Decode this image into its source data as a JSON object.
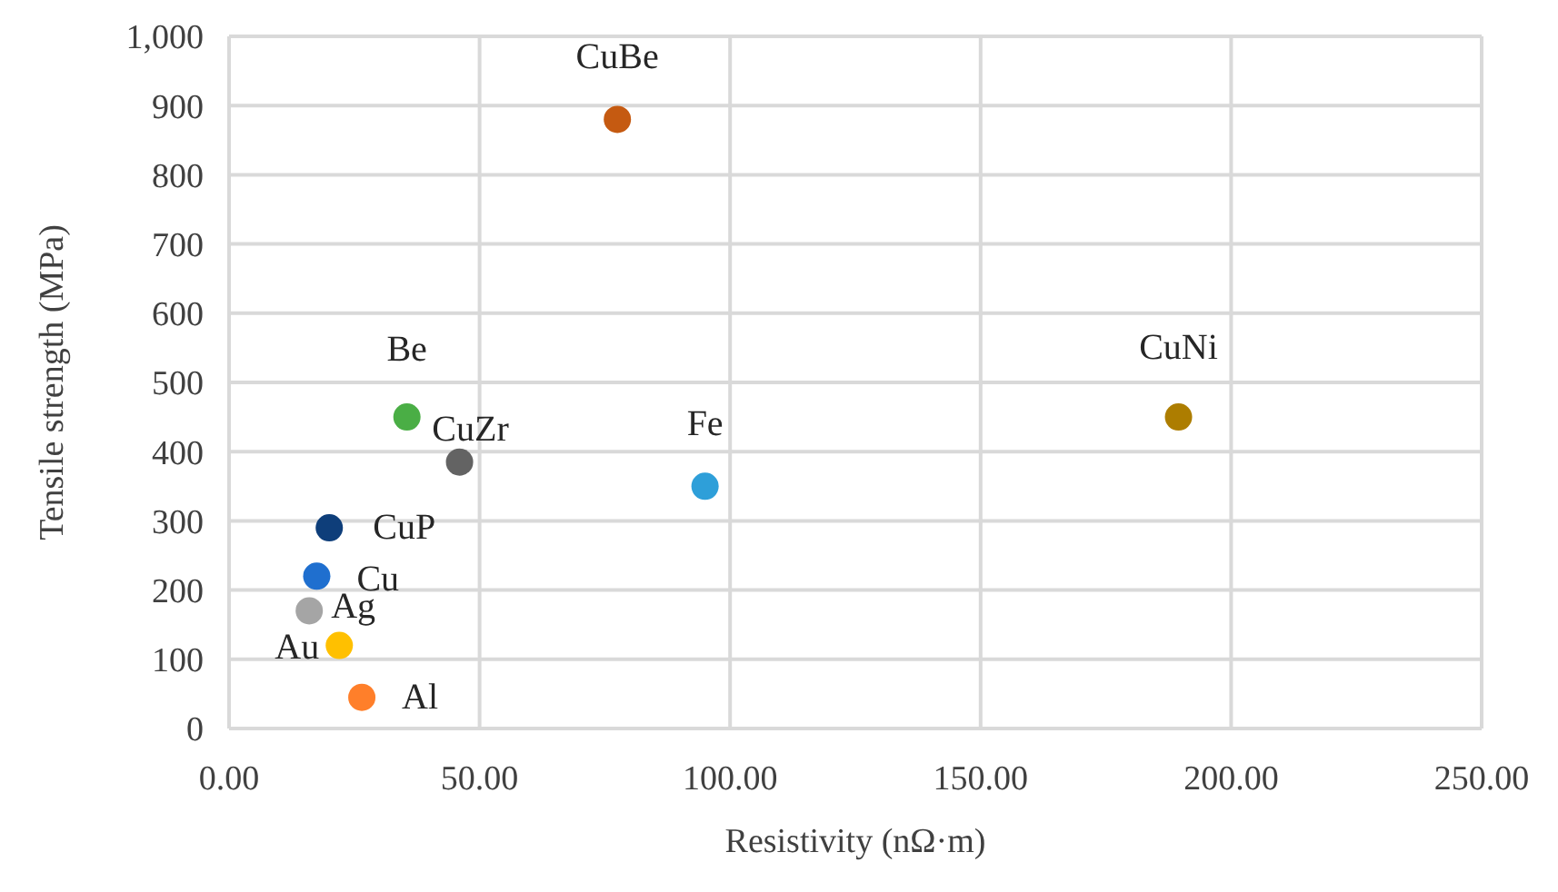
{
  "chart_data": {
    "type": "scatter",
    "xlabel": "Resistivity (nΩ·m)",
    "ylabel": "Tensile strength (MPa)",
    "xlim": [
      0,
      250
    ],
    "xticks": [
      {
        "value": 0,
        "label": "0.00"
      },
      {
        "value": 50,
        "label": "50.00"
      },
      {
        "value": 100,
        "label": "100.00"
      },
      {
        "value": 150,
        "label": "150.00"
      },
      {
        "value": 200,
        "label": "200.00"
      },
      {
        "value": 250,
        "label": "250.00"
      }
    ],
    "ylim": [
      0,
      1000
    ],
    "yticks": [
      0,
      100,
      200,
      300,
      400,
      500,
      600,
      700,
      800,
      900,
      {
        "value": 1000,
        "label": "1,000"
      }
    ],
    "grid": true,
    "legend": false,
    "marker": "circle",
    "series": [
      {
        "name": "CuBe",
        "color": "#c55a11",
        "x": [
          77.5
        ],
        "values": [
          880
        ]
      },
      {
        "name": "CuNi",
        "color": "#ad7d00",
        "x": [
          189.5
        ],
        "values": [
          450
        ]
      },
      {
        "name": "Fe",
        "color": "#2e9fd9",
        "x": [
          95
        ],
        "values": [
          350
        ]
      },
      {
        "name": "Be",
        "color": "#4aae45",
        "x": [
          35.5
        ],
        "values": [
          450
        ]
      },
      {
        "name": "CuZr",
        "color": "#636363",
        "x": [
          46
        ],
        "values": [
          385
        ]
      },
      {
        "name": "CuP",
        "color": "#0e3e7a",
        "x": [
          20
        ],
        "values": [
          290
        ]
      },
      {
        "name": "Cu",
        "color": "#1f6fcf",
        "x": [
          17.5
        ],
        "values": [
          220
        ]
      },
      {
        "name": "Ag",
        "color": "#a5a5a5",
        "x": [
          16
        ],
        "values": [
          170
        ]
      },
      {
        "name": "Au",
        "color": "#ffc000",
        "x": [
          22
        ],
        "values": [
          120
        ]
      },
      {
        "name": "Al",
        "color": "#ff7f2a",
        "x": [
          26.5
        ],
        "values": [
          45
        ]
      }
    ]
  }
}
